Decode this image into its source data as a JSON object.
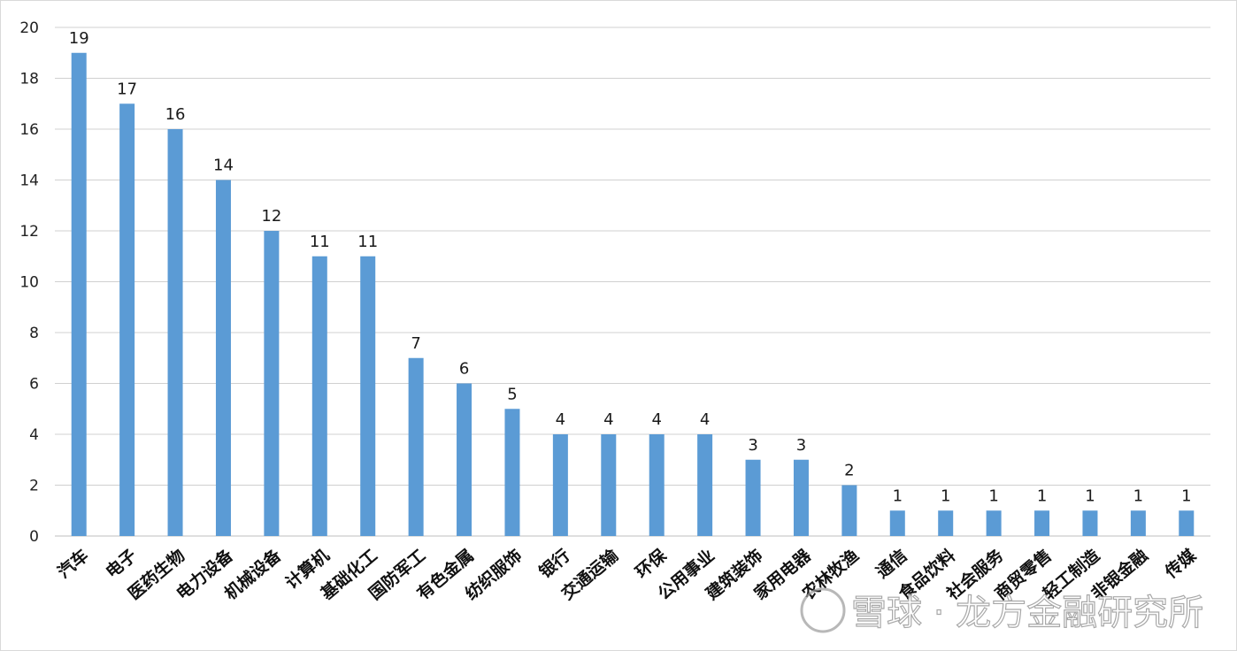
{
  "chart_data": {
    "type": "bar",
    "categories": [
      "汽车",
      "电子",
      "医药生物",
      "电力设备",
      "机械设备",
      "计算机",
      "基础化工",
      "国防军工",
      "有色金属",
      "纺织服饰",
      "银行",
      "交通运输",
      "环保",
      "公用事业",
      "建筑装饰",
      "家用电器",
      "农林牧渔",
      "通信",
      "食品饮料",
      "社会服务",
      "商贸零售",
      "轻工制造",
      "非银金融",
      "传媒"
    ],
    "values": [
      19,
      17,
      16,
      14,
      12,
      11,
      11,
      7,
      6,
      5,
      4,
      4,
      4,
      4,
      3,
      3,
      2,
      1,
      1,
      1,
      1,
      1,
      1,
      1
    ],
    "ylim": [
      0,
      20
    ],
    "yticks": [
      0,
      2,
      4,
      6,
      8,
      10,
      12,
      14,
      16,
      18,
      20
    ],
    "grid": true,
    "bar_color": "#5b9bd5",
    "grid_color": "#d0d0d0"
  },
  "watermark": {
    "text": "雪球 · 龙方金融研究所"
  }
}
